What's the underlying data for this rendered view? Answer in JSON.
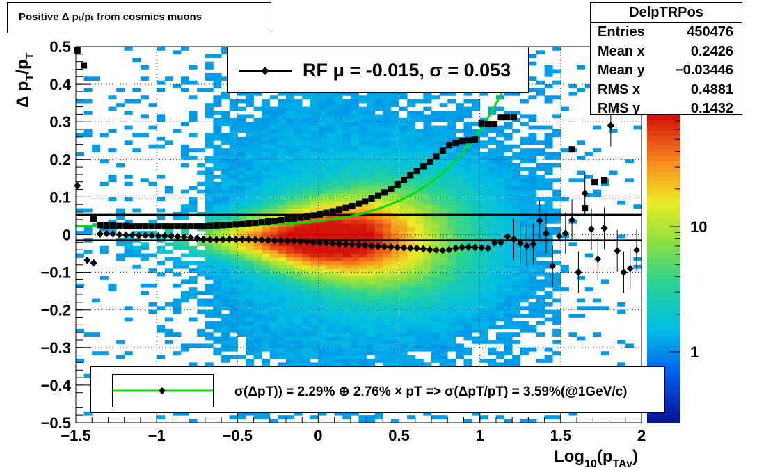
{
  "title": "Positive Δ pₜ/pₜ from cosmics muons",
  "stats": {
    "name": "DelpTRPos",
    "rows": [
      {
        "label": "Entries",
        "value": "450476"
      },
      {
        "label": "Mean x",
        "value": "0.2426"
      },
      {
        "label": "Mean y",
        "value": "−0.03446"
      },
      {
        "label": "RMS x",
        "value": "0.4881"
      },
      {
        "label": "RMS y",
        "value": "0.1432"
      }
    ]
  },
  "legend_top": "RF μ = -0.015, σ =   0.053",
  "legend_bottom": "σ(ΔpT)) =  2.29% ⊕  2.76% × pT => σ(ΔpT/pT) =  3.59%(@1GeV/c)",
  "chart_data": {
    "type": "heatmap",
    "title": "Positive Δ p_T/p_T from cosmics muons",
    "xlabel": "Log10(p_TAv)",
    "ylabel": "Δ p_T/p_T",
    "xlim": [
      -1.5,
      2.0
    ],
    "ylim": [
      -0.5,
      0.5
    ],
    "x_ticks": [
      "−1.5",
      "−1",
      "−0.5",
      "0",
      "0.5",
      "1",
      "1.5",
      "2"
    ],
    "y_ticks": [
      "0.5",
      "0.4",
      "0.3",
      "0.2",
      "0.1",
      "0",
      "−0.1",
      "−0.2",
      "−0.3",
      "−0.4",
      "−0.5"
    ],
    "z_scale": "log",
    "z_ticks": [
      "1",
      "10"
    ],
    "grid": true,
    "horizontal_lines": [
      0.053,
      -0.015
    ],
    "series": [
      {
        "name": "RF",
        "marker": "diamond",
        "x": [
          -1.49,
          -1.43,
          -1.39,
          -1.35,
          -1.31,
          -1.27,
          -1.23,
          -1.19,
          -1.15,
          -1.11,
          -1.07,
          -1.03,
          -0.99,
          -0.95,
          -0.91,
          -0.87,
          -0.83,
          -0.79,
          -0.75,
          -0.71,
          -0.67,
          -0.63,
          -0.59,
          -0.55,
          -0.51,
          -0.47,
          -0.43,
          -0.39,
          -0.35,
          -0.31,
          -0.27,
          -0.23,
          -0.19,
          -0.15,
          -0.11,
          -0.07,
          -0.03,
          0.01,
          0.05,
          0.09,
          0.13,
          0.17,
          0.21,
          0.25,
          0.29,
          0.33,
          0.37,
          0.41,
          0.45,
          0.49,
          0.53,
          0.57,
          0.61,
          0.65,
          0.69,
          0.73,
          0.77,
          0.81,
          0.85,
          0.89,
          0.93,
          0.97,
          1.01,
          1.05,
          1.09,
          1.13,
          1.17,
          1.21,
          1.25,
          1.29,
          1.33,
          1.37,
          1.41,
          1.45,
          1.49,
          1.53,
          1.57,
          1.61,
          1.65,
          1.69,
          1.73,
          1.77,
          1.81,
          1.85,
          1.89,
          1.93,
          1.97
        ],
        "y": [
          0.13,
          -0.068,
          -0.075,
          0.002,
          0.003,
          0.002,
          0.0,
          -0.001,
          -0.001,
          -0.002,
          -0.002,
          -0.002,
          -0.003,
          -0.003,
          -0.004,
          -0.005,
          -0.006,
          -0.008,
          -0.01,
          -0.012,
          -0.013,
          -0.013,
          -0.013,
          -0.012,
          -0.012,
          -0.012,
          -0.012,
          -0.013,
          -0.014,
          -0.015,
          -0.016,
          -0.016,
          -0.017,
          -0.017,
          -0.018,
          -0.019,
          -0.021,
          -0.022,
          -0.022,
          -0.023,
          -0.024,
          -0.025,
          -0.026,
          -0.027,
          -0.028,
          -0.03,
          -0.031,
          -0.032,
          -0.033,
          -0.034,
          -0.035,
          -0.036,
          -0.036,
          -0.038,
          -0.04,
          -0.041,
          -0.042,
          -0.04,
          -0.036,
          -0.034,
          -0.033,
          -0.034,
          -0.035,
          -0.036,
          -0.022,
          -0.021,
          -0.005,
          -0.012,
          -0.023,
          -0.03,
          -0.025,
          0.037,
          0.004,
          -0.083,
          -0.004,
          0.004,
          0.039,
          -0.1,
          0.11,
          0.015,
          -0.065,
          0.017,
          0.29,
          -0.043,
          -0.1,
          -0.09,
          -0.041
        ]
      },
      {
        "name": "sigma",
        "marker": "square",
        "x": [
          -1.49,
          -1.45,
          -1.39,
          -1.35,
          -1.31,
          -1.27,
          -1.23,
          -1.19,
          -1.15,
          -1.11,
          -1.07,
          -1.03,
          -0.99,
          -0.95,
          -0.91,
          -0.87,
          -0.83,
          -0.79,
          -0.75,
          -0.71,
          -0.67,
          -0.63,
          -0.59,
          -0.55,
          -0.51,
          -0.47,
          -0.43,
          -0.39,
          -0.35,
          -0.31,
          -0.27,
          -0.23,
          -0.19,
          -0.15,
          -0.11,
          -0.07,
          -0.03,
          0.01,
          0.05,
          0.09,
          0.13,
          0.17,
          0.21,
          0.25,
          0.29,
          0.33,
          0.37,
          0.41,
          0.45,
          0.49,
          0.53,
          0.57,
          0.61,
          0.65,
          0.69,
          0.73,
          0.77,
          0.81,
          0.85,
          0.89,
          0.93,
          0.97,
          1.01,
          1.05,
          1.09,
          1.13,
          1.17,
          1.21,
          1.57,
          1.65,
          1.71,
          1.77
        ],
        "y": [
          0.49,
          0.45,
          0.041,
          0.025,
          0.024,
          0.024,
          0.023,
          0.023,
          0.022,
          0.022,
          0.022,
          0.022,
          0.022,
          0.022,
          0.022,
          0.022,
          0.022,
          0.022,
          0.022,
          0.022,
          0.023,
          0.024,
          0.025,
          0.026,
          0.027,
          0.028,
          0.03,
          0.031,
          0.033,
          0.035,
          0.037,
          0.039,
          0.041,
          0.043,
          0.045,
          0.048,
          0.051,
          0.054,
          0.058,
          0.062,
          0.066,
          0.071,
          0.076,
          0.082,
          0.088,
          0.096,
          0.104,
          0.112,
          0.122,
          0.133,
          0.146,
          0.158,
          0.17,
          0.182,
          0.194,
          0.208,
          0.223,
          0.238,
          0.244,
          0.249,
          0.251,
          0.253,
          0.296,
          0.294,
          0.294,
          0.312,
          0.312,
          0.312,
          0.227,
          0.07,
          0.14,
          0.145
        ]
      }
    ],
    "fit": {
      "name": "σ(ΔpT)) =  2.29% ⊕  2.76% × pT => σ(ΔpT/pT) =  3.59%(@1GeV/c)",
      "color": "#00e000",
      "a": 0.0229,
      "b": 0.0276
    }
  }
}
